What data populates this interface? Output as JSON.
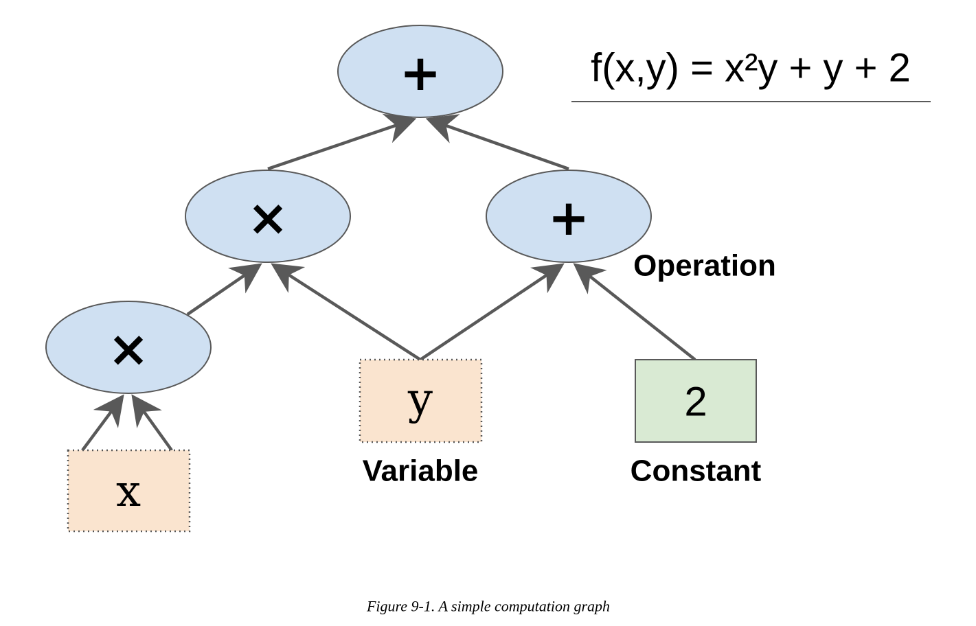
{
  "formula": "f(x,y) = x²y + y + 2",
  "nodes": {
    "root_plus": "+",
    "multiply_upper": "×",
    "plus_right": "+",
    "multiply_lower": "×",
    "variable_x": "x",
    "variable_y": "y",
    "constant_two": "2"
  },
  "legend": {
    "operation": "Operation",
    "variable": "Variable",
    "constant": "Constant"
  },
  "caption": "Figure 9-1. A simple computation graph",
  "colors": {
    "operation_fill": "#cfe0f2",
    "variable_fill": "#fae4cf",
    "constant_fill": "#d9ead3",
    "edge": "#595959"
  }
}
